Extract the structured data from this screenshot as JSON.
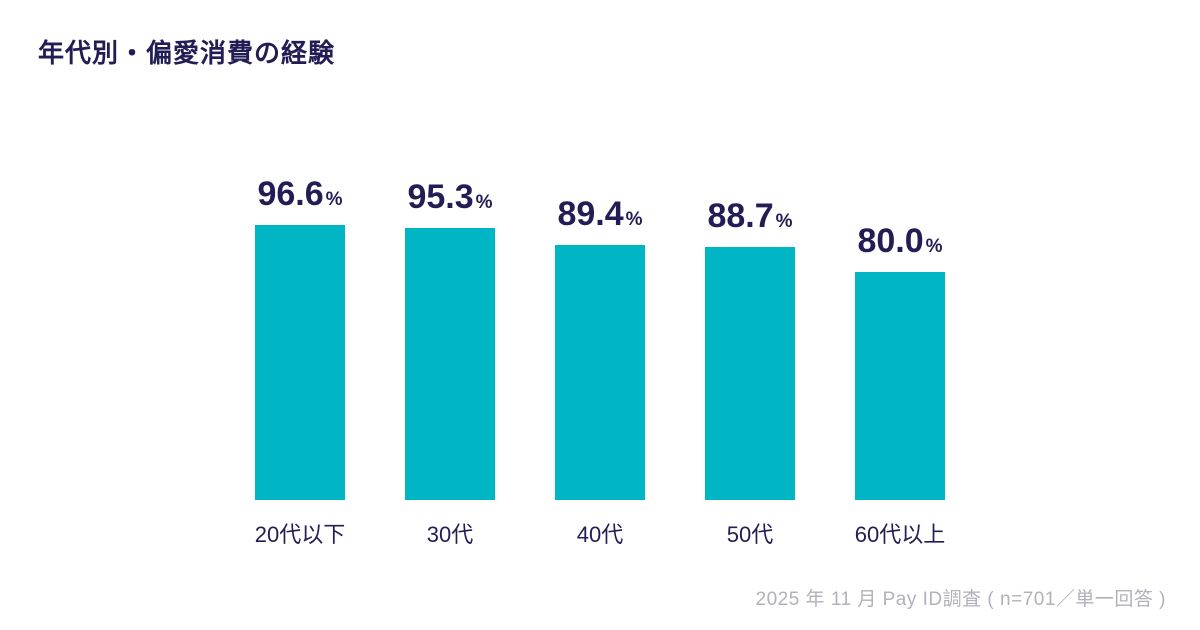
{
  "page": {
    "title": "年代別・偏愛消費の経験",
    "source_note": "2025 年 11 月 Pay ID調査 ( n=701／単一回答 )"
  },
  "colors": {
    "bar": "#00b6c4",
    "text": "#221d54",
    "footer_text": "#b2b0bb",
    "background": "#ffffff"
  },
  "chart_data": {
    "type": "bar",
    "title": "年代別・偏愛消費の経験",
    "categories": [
      "20代以下",
      "30代",
      "40代",
      "50代",
      "60代以上"
    ],
    "values": [
      96.6,
      95.3,
      89.4,
      88.7,
      80.0
    ],
    "value_suffix": "%",
    "xlabel": "",
    "ylabel": "",
    "ylim": [
      0,
      100
    ],
    "grid": false,
    "legend": "none",
    "value_label_position": "above-bars",
    "source_note": "2025 年 11 月 Pay ID調査 ( n=701／単一回答 )"
  }
}
